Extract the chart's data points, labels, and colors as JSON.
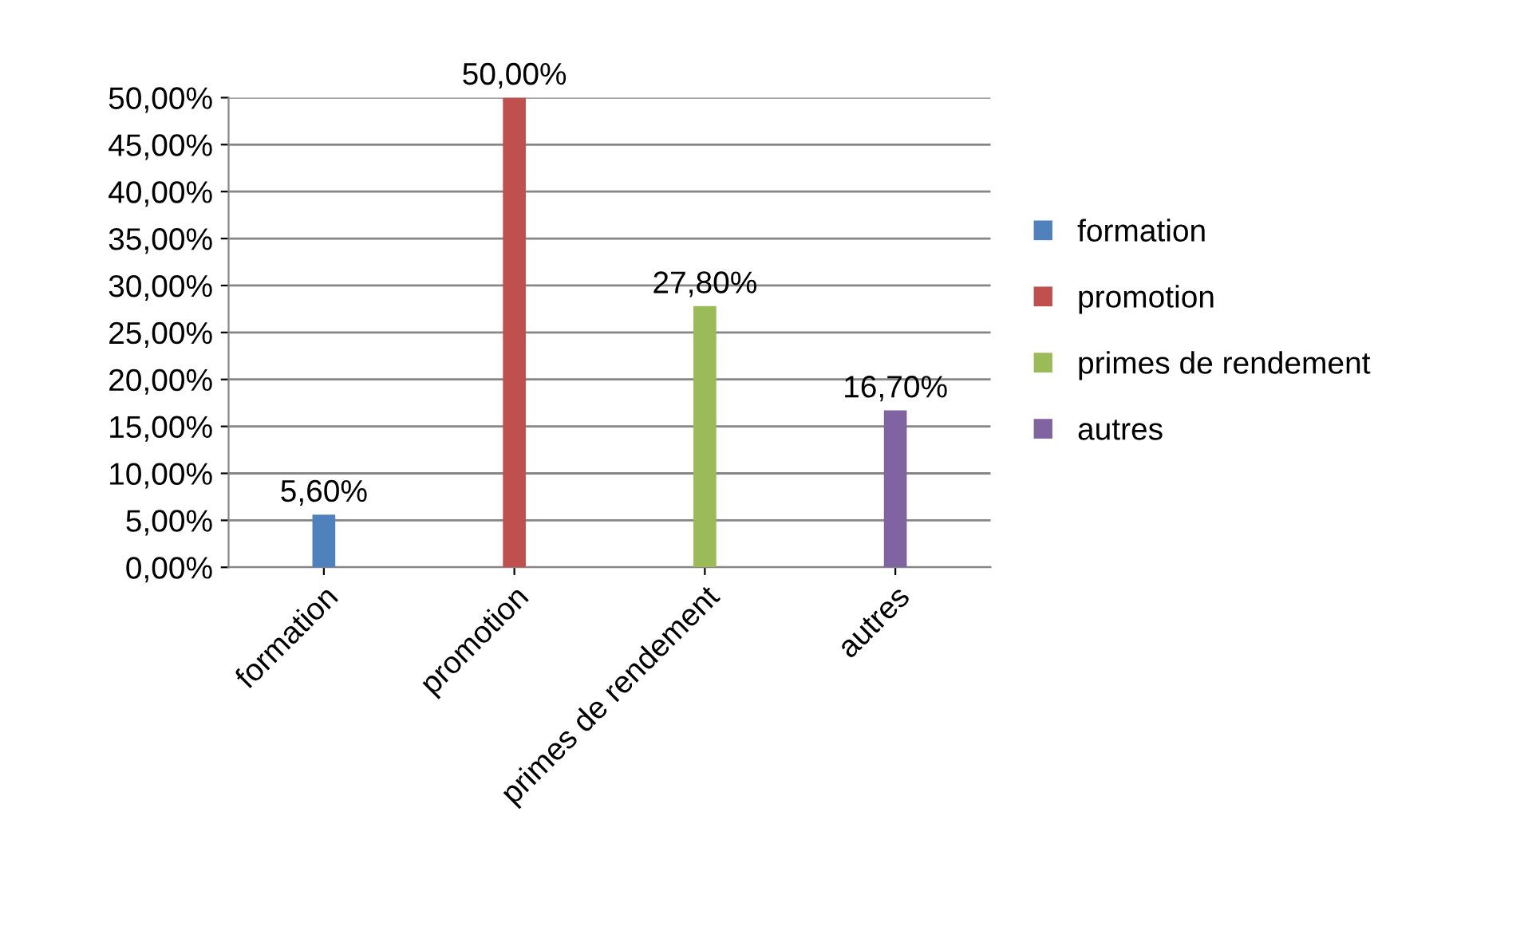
{
  "chart_data": {
    "type": "bar",
    "categories": [
      "formation",
      "promotion",
      "primes de rendement",
      "autres"
    ],
    "series": [
      {
        "name": "formation",
        "color": "#4f81bd",
        "values": [
          5.6,
          null,
          null,
          null
        ],
        "value_labels": [
          "5,60%",
          null,
          null,
          null
        ]
      },
      {
        "name": "promotion",
        "color": "#c0504d",
        "values": [
          null,
          50,
          null,
          null
        ],
        "value_labels": [
          null,
          "50,00%",
          null,
          null
        ]
      },
      {
        "name": "primes de rendement",
        "color": "#9bbb59",
        "values": [
          null,
          null,
          27.8,
          null
        ],
        "value_labels": [
          null,
          null,
          "27,80%",
          null
        ]
      },
      {
        "name": "autres",
        "color": "#8064a2",
        "values": [
          null,
          null,
          null,
          16.7
        ],
        "value_labels": [
          null,
          null,
          null,
          "16,70%"
        ]
      }
    ],
    "ylim": [
      0,
      50
    ],
    "yticks": [
      {
        "value": 0,
        "label": "0,00%"
      },
      {
        "value": 5,
        "label": "5,00%"
      },
      {
        "value": 10,
        "label": "10,00%"
      },
      {
        "value": 15,
        "label": "15,00%"
      },
      {
        "value": 20,
        "label": "20,00%"
      },
      {
        "value": 25,
        "label": "25,00%"
      },
      {
        "value": 30,
        "label": "30,00%"
      },
      {
        "value": 35,
        "label": "35,00%"
      },
      {
        "value": 40,
        "label": "40,00%"
      },
      {
        "value": 45,
        "label": "45,00%"
      },
      {
        "value": 50,
        "label": "50,00%"
      }
    ],
    "grid": "y",
    "legend": "right"
  }
}
